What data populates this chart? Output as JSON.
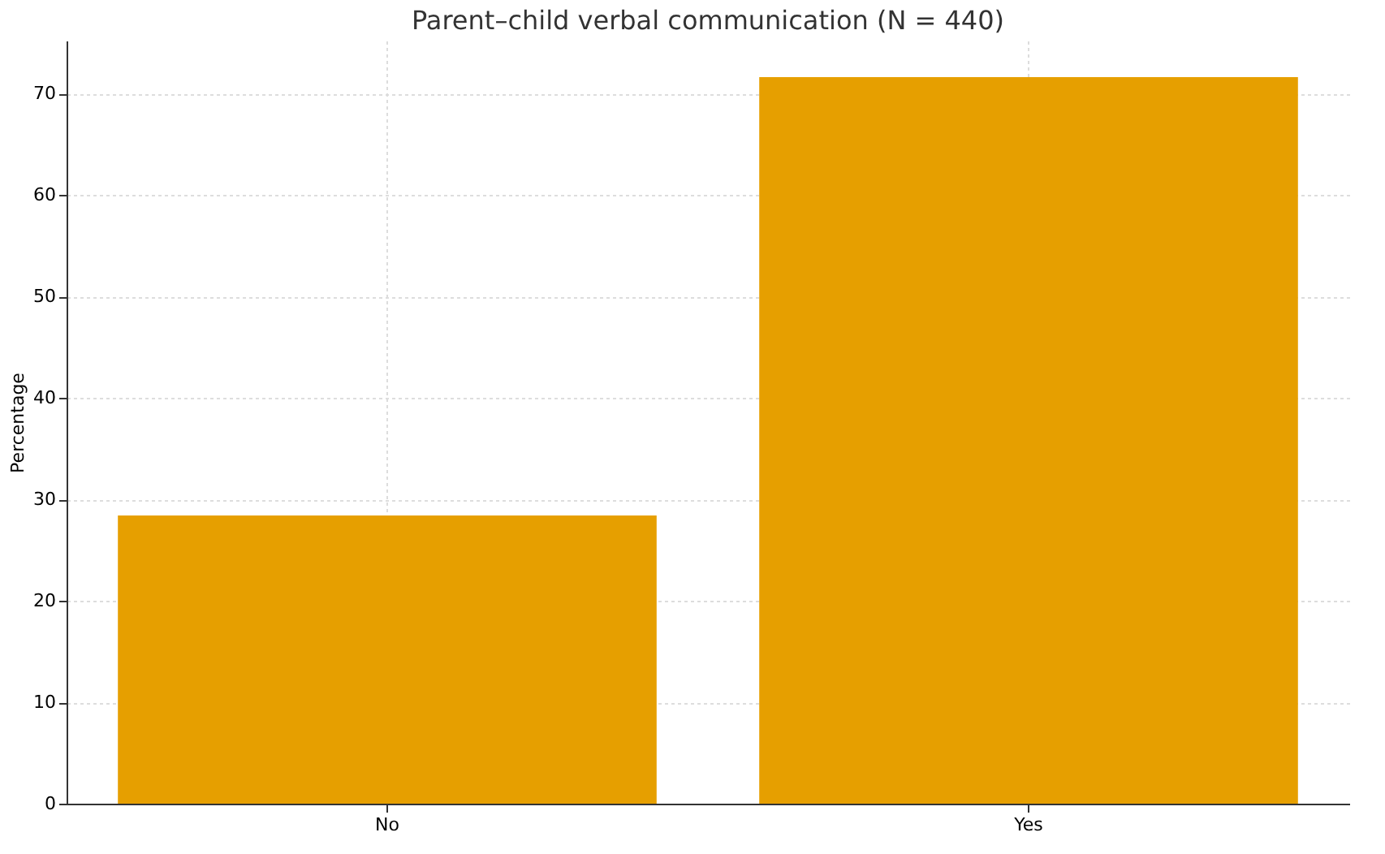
{
  "chart_data": {
    "type": "bar",
    "title": "Parent–child verbal communication (N = 440)",
    "ylabel": "Percentage",
    "categories": [
      "No",
      "Yes"
    ],
    "values": [
      28.4,
      71.6
    ],
    "color": "#e69f00",
    "ylim": [
      0,
      75.2
    ],
    "yticks": [
      0,
      10,
      20,
      30,
      40,
      50,
      60,
      70
    ],
    "grid": true
  }
}
